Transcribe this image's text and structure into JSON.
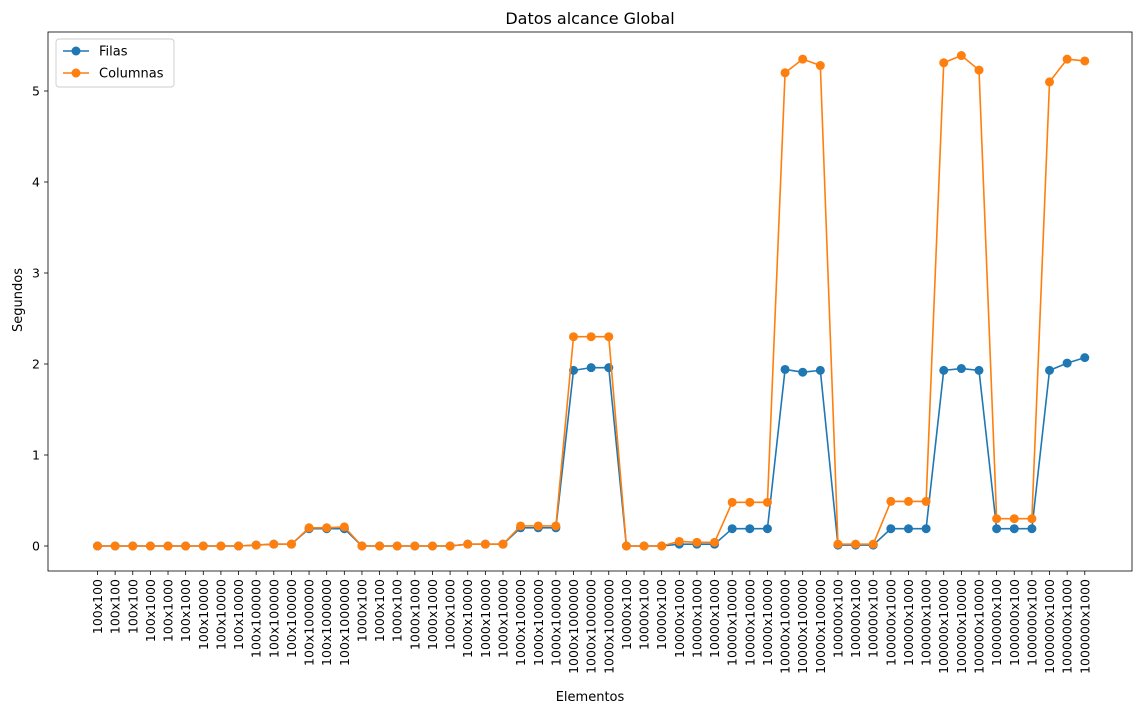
{
  "chart_data": {
    "type": "line",
    "title": "Datos alcance Global",
    "xlabel": "Elementos",
    "ylabel": "Segundos",
    "ylim": [
      0,
      5.5
    ],
    "yticks": [
      0,
      1,
      2,
      3,
      4,
      5
    ],
    "grid": false,
    "legend_position": "top-left",
    "categories": [
      "100x100",
      "100x100",
      "100x100",
      "100x1000",
      "100x1000",
      "100x1000",
      "100x10000",
      "100x10000",
      "100x10000",
      "100x100000",
      "100x100000",
      "100x100000",
      "100x1000000",
      "100x1000000",
      "100x1000000",
      "1000x100",
      "1000x100",
      "1000x100",
      "1000x1000",
      "1000x1000",
      "1000x1000",
      "1000x10000",
      "1000x10000",
      "1000x10000",
      "1000x100000",
      "1000x100000",
      "1000x100000",
      "1000x1000000",
      "1000x1000000",
      "1000x1000000",
      "10000x100",
      "10000x100",
      "10000x100",
      "10000x1000",
      "10000x1000",
      "10000x1000",
      "10000x10000",
      "10000x10000",
      "10000x10000",
      "10000x100000",
      "10000x100000",
      "10000x100000",
      "100000x100",
      "100000x100",
      "100000x100",
      "100000x1000",
      "100000x1000",
      "100000x1000",
      "100000x10000",
      "100000x10000",
      "100000x10000",
      "1000000x100",
      "1000000x100",
      "1000000x100",
      "1000000x1000",
      "1000000x1000",
      "1000000x1000"
    ],
    "series": [
      {
        "name": "Filas",
        "color": "#1f77b4",
        "values": [
          0.0,
          0.0,
          0.0,
          0.0,
          0.0,
          0.0,
          0.0,
          0.0,
          0.0,
          0.01,
          0.02,
          0.02,
          0.19,
          0.19,
          0.19,
          0.0,
          0.0,
          0.0,
          0.0,
          0.0,
          0.0,
          0.02,
          0.02,
          0.02,
          0.2,
          0.2,
          0.2,
          1.93,
          1.96,
          1.96,
          0.0,
          0.0,
          0.0,
          0.02,
          0.02,
          0.02,
          0.19,
          0.19,
          0.19,
          1.94,
          1.91,
          1.93,
          0.01,
          0.01,
          0.01,
          0.19,
          0.19,
          0.19,
          1.93,
          1.95,
          1.93,
          0.19,
          0.19,
          0.19,
          1.93,
          2.01,
          2.07
        ]
      },
      {
        "name": "Columnas",
        "color": "#ff7f0e",
        "values": [
          0.0,
          0.0,
          0.0,
          0.0,
          0.0,
          0.0,
          0.0,
          0.0,
          0.0,
          0.01,
          0.02,
          0.02,
          0.2,
          0.2,
          0.21,
          0.0,
          0.0,
          0.0,
          0.0,
          0.0,
          0.0,
          0.02,
          0.02,
          0.02,
          0.22,
          0.22,
          0.22,
          2.3,
          2.3,
          2.3,
          0.0,
          0.0,
          0.0,
          0.05,
          0.04,
          0.04,
          0.48,
          0.48,
          0.48,
          5.2,
          5.35,
          5.28,
          0.02,
          0.02,
          0.02,
          0.49,
          0.49,
          0.49,
          5.31,
          5.39,
          5.23,
          0.3,
          0.3,
          0.3,
          5.1,
          5.35,
          5.33
        ]
      }
    ]
  }
}
